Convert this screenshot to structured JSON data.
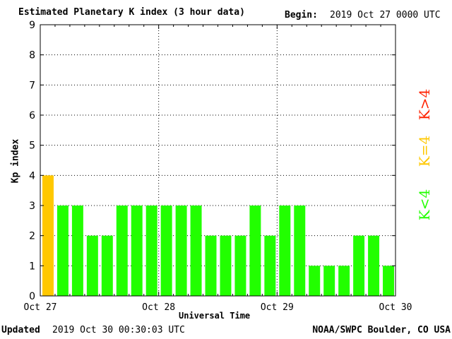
{
  "header": {
    "title": "Estimated Planetary K index (3 hour data)",
    "begin_label": "Begin:",
    "begin_value": "2019 Oct 27 0000 UTC"
  },
  "footer": {
    "updated_label": "Updated",
    "updated_value": "2019 Oct 30 00:30:03 UTC",
    "credit": "NOAA/SWPC Boulder, CO USA"
  },
  "legend": {
    "below": "K<4",
    "equal": "K=4",
    "above": "K>4"
  },
  "colors": {
    "below": "#22ff00",
    "equal": "#ffc800",
    "above": "#ff2200",
    "grid": "#000000",
    "frame": "#000000"
  },
  "chart_data": {
    "type": "bar",
    "xlabel": "Universal Time",
    "ylabel": "Kp index",
    "ylim": [
      0,
      9
    ],
    "y_ticks": [
      "0",
      "1",
      "2",
      "3",
      "4",
      "5",
      "6",
      "7",
      "8",
      "9"
    ],
    "x_ticks": [
      "Oct 27",
      "Oct 28",
      "Oct 29",
      "Oct 30"
    ],
    "values": [
      4,
      3,
      3,
      2,
      2,
      3,
      3,
      3,
      3,
      3,
      3,
      2,
      2,
      2,
      3,
      2,
      3,
      3,
      1,
      1,
      1,
      2,
      2,
      1
    ],
    "grid": true,
    "grid_style": "dotted",
    "legend_placement": "right"
  }
}
